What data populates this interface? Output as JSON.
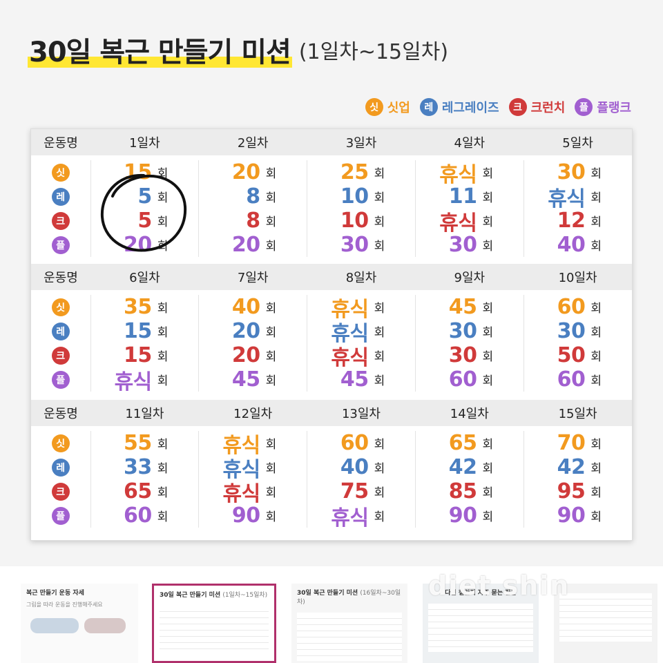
{
  "header": {
    "title": "30일 복근 만들기 미션",
    "subtitle": "(1일차~15일차)"
  },
  "legend": [
    {
      "badge": "싯",
      "label": "싯업",
      "color": "#f29a1f"
    },
    {
      "badge": "레",
      "label": "레그레이즈",
      "color": "#4a7fc1"
    },
    {
      "badge": "크",
      "label": "크런치",
      "color": "#d03a3a"
    },
    {
      "badge": "플",
      "label": "플랭크",
      "color": "#a15fd0"
    }
  ],
  "table": {
    "name_header": "운동명",
    "unit": "회",
    "badges": [
      "싯",
      "레",
      "크",
      "플"
    ],
    "blocks": [
      {
        "days": [
          "1일차",
          "2일차",
          "3일차",
          "4일차",
          "5일차"
        ],
        "values": [
          [
            "15",
            "5",
            "5",
            "20"
          ],
          [
            "20",
            "8",
            "8",
            "20"
          ],
          [
            "25",
            "10",
            "10",
            "30"
          ],
          [
            "휴식",
            "11",
            "휴식",
            "30"
          ],
          [
            "30",
            "휴식",
            "12",
            "40"
          ]
        ]
      },
      {
        "days": [
          "6일차",
          "7일차",
          "8일차",
          "9일차",
          "10일차"
        ],
        "values": [
          [
            "35",
            "15",
            "15",
            "휴식"
          ],
          [
            "40",
            "20",
            "20",
            "45"
          ],
          [
            "휴식",
            "휴식",
            "휴식",
            "45"
          ],
          [
            "45",
            "30",
            "30",
            "60"
          ],
          [
            "60",
            "30",
            "50",
            "60"
          ]
        ]
      },
      {
        "days": [
          "11일차",
          "12일차",
          "13일차",
          "14일차",
          "15일차"
        ],
        "values": [
          [
            "55",
            "33",
            "65",
            "60"
          ],
          [
            "휴식",
            "휴식",
            "휴식",
            "90"
          ],
          [
            "60",
            "40",
            "75",
            "휴식"
          ],
          [
            "65",
            "42",
            "85",
            "90"
          ],
          [
            "70",
            "42",
            "95",
            "90"
          ]
        ]
      }
    ]
  },
  "thumbnails": [
    {
      "title": "복근 만들기 운동 자세",
      "subtitle": "그림을 따라 운동을 진행해주세요"
    },
    {
      "title": "30일 복근 만들기 미션",
      "subtitle": "(1일차~15일차)"
    },
    {
      "title": "30일 복근 만들기 미션",
      "subtitle": "(16일차~30일차)"
    },
    {
      "title": "다신 챌린지 자주 묻는 질문",
      "subtitle": ""
    },
    {
      "title": "",
      "subtitle": ""
    }
  ],
  "watermark": "diet shin"
}
